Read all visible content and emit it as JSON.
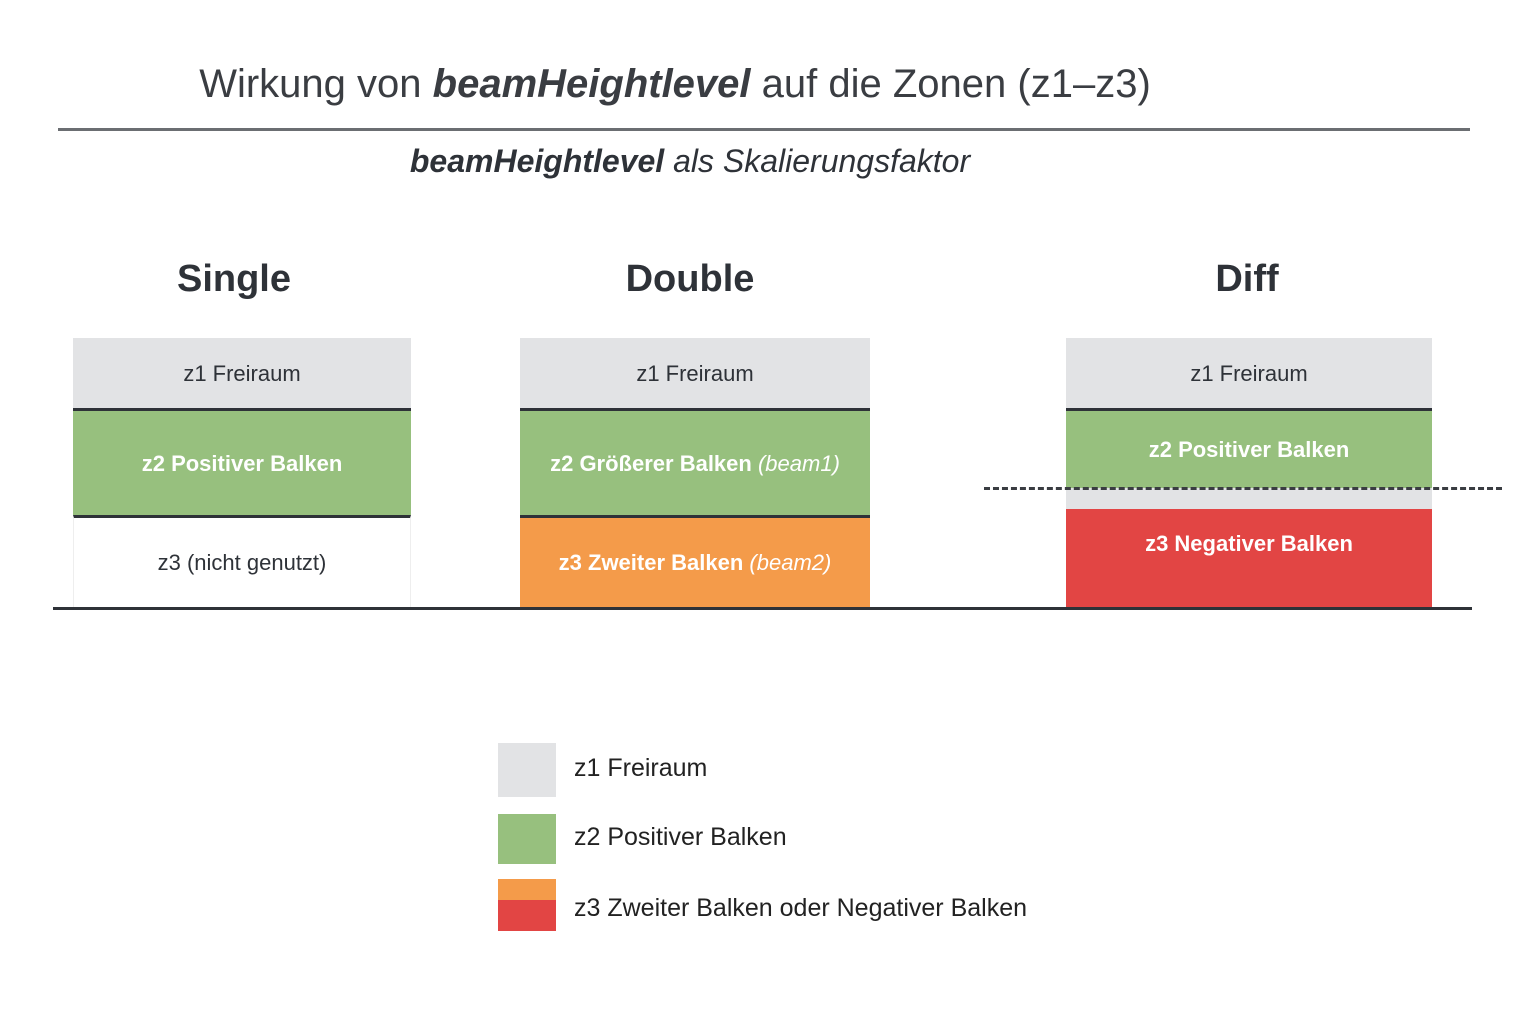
{
  "title": {
    "prefix": "Wirkung von ",
    "emph": "beamHeightlevel",
    "suffix": " auf die Zonen (z1–z3)"
  },
  "subtitle": {
    "emph": "beamHeightlevel",
    "suffix": " als Skalierungsfaktor"
  },
  "colors": {
    "z1": "#e2e3e5",
    "z2": "#97c07e",
    "z3_second": "#f49b4a",
    "z3_negative": "#e24544",
    "line": "#2e3238"
  },
  "columns": [
    {
      "heading": "Single",
      "z1": "z1 Freiraum",
      "z2": "z2 Positiver Balken",
      "z3": "z3 (nicht genutzt)"
    },
    {
      "heading": "Double",
      "z1": "z1 Freiraum",
      "z2": "z2 Größerer Balken",
      "z2_note": "(beam1)",
      "z3": "z3 Zweiter Balken",
      "z3_note": "(beam2)"
    },
    {
      "heading": "Diff",
      "z1": "z1 Freiraum",
      "z2": "z2 Positiver Balken",
      "z3": "z3 Negativer Balken"
    }
  ],
  "legend": [
    {
      "label": "z1 Freiraum"
    },
    {
      "label": "z2 Positiver Balken"
    },
    {
      "label": "z3 Zweiter Balken oder Negativer Balken"
    }
  ]
}
